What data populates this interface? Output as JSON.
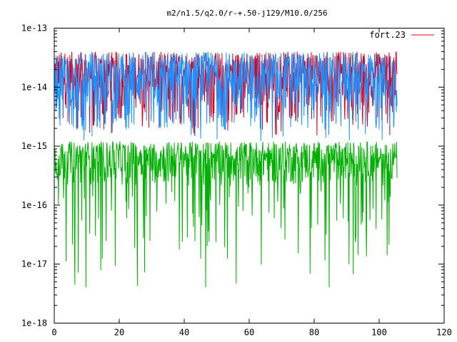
{
  "chart_data": {
    "type": "line",
    "title": "m2/n1.5/q2.0/r-+.50-j129/M10.0/256",
    "xlabel": "",
    "ylabel": "",
    "xlim": [
      0,
      120
    ],
    "ylim": [
      1e-18,
      1e-13
    ],
    "yscale": "log",
    "grid": false,
    "legend_position": "top-right",
    "x_ticks": [
      0,
      20,
      40,
      60,
      80,
      100,
      120
    ],
    "x_tick_labels": [
      "0",
      "20",
      "40",
      "60",
      "80",
      "100",
      "120"
    ],
    "y_ticks": [
      1e-18,
      1e-17,
      1e-16,
      1e-15,
      1e-14,
      1e-13
    ],
    "y_tick_labels": [
      "1e-18",
      "1e-17",
      "1e-16",
      "1e-15",
      "1e-14",
      "1e-13"
    ],
    "series": [
      {
        "name": "fort.23",
        "color": "#e0001a",
        "x_range": [
          0,
          105.5
        ],
        "typical_y_range": [
          4e-15,
          4e-14
        ],
        "dips_to": 1.5e-15
      },
      {
        "color": "#1e90ff",
        "x_range": [
          0,
          105.5
        ],
        "typical_y_range": [
          3e-15,
          4e-14
        ],
        "dips_to": 1.2e-15
      },
      {
        "color": "#00b000",
        "x_range": [
          0,
          105.5
        ],
        "typical_y_range": [
          2e-16,
          1.2e-15
        ],
        "dips_to": 4e-18
      }
    ]
  }
}
